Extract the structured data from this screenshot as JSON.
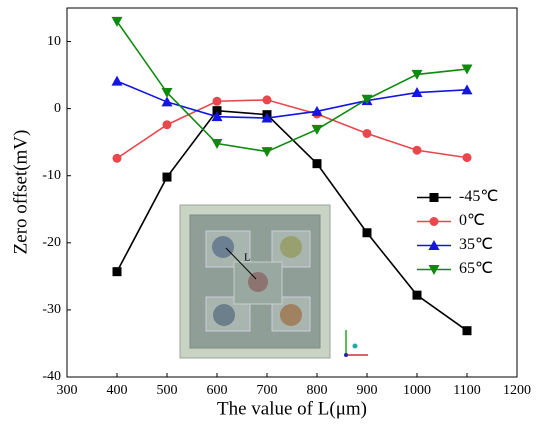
{
  "chart_data": {
    "type": "line",
    "x_label": "The value of L(μm)",
    "y_label": "Zero offset(mV)",
    "x": [
      400,
      500,
      600,
      700,
      800,
      900,
      1000,
      1100
    ],
    "series": [
      {
        "name": "-45℃",
        "color": "#000000",
        "marker": "square",
        "values": [
          -24.3,
          -10.2,
          -0.3,
          -0.9,
          -8.2,
          -18.5,
          -27.8,
          -33.1
        ]
      },
      {
        "name": "0℃",
        "color": "#e8474c",
        "marker": "circle",
        "values": [
          -7.4,
          -2.4,
          1.1,
          1.3,
          -0.8,
          -3.7,
          -6.2,
          -7.3
        ]
      },
      {
        "name": "35℃",
        "color": "#1515e0",
        "marker": "triangle-up",
        "values": [
          4.1,
          1.0,
          -1.2,
          -1.4,
          -0.4,
          1.2,
          2.4,
          2.8
        ]
      },
      {
        "name": "65℃",
        "color": "#0f8a0f",
        "marker": "triangle-down",
        "values": [
          13.0,
          2.4,
          -5.2,
          -6.4,
          -3.1,
          1.4,
          5.1,
          5.9
        ]
      }
    ],
    "xlim": [
      300,
      1200
    ],
    "xticks": [
      300,
      400,
      500,
      600,
      700,
      800,
      900,
      1000,
      1100,
      1200
    ],
    "ylim": [
      -40,
      15
    ],
    "yticks": [
      -40,
      -30,
      -20,
      -10,
      0,
      10
    ],
    "legend": "center right",
    "inset_label": "L"
  }
}
